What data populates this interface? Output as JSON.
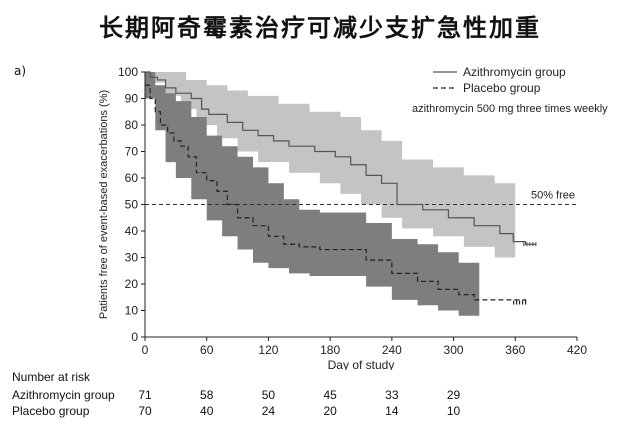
{
  "title": "长期阿奇霉素治疗可减少支扩急性加重",
  "panel_label": "a)",
  "chart_data": {
    "type": "line",
    "xlabel": "Day of study",
    "ylabel": "Patients free of event-based exacerbations (%)",
    "xlim": [
      0,
      420
    ],
    "ylim": [
      0,
      100
    ],
    "x_ticks": [
      0,
      60,
      120,
      180,
      240,
      300,
      360,
      420
    ],
    "y_ticks": [
      0,
      10,
      20,
      30,
      40,
      50,
      60,
      70,
      80,
      90,
      100
    ],
    "grid": false,
    "legend_position": "top-right",
    "annotation": "azithromycin 500 mg three times weekly",
    "reference_line": {
      "y": 50,
      "label": "50% free",
      "style": "dashed"
    },
    "series": [
      {
        "name": "Azithromycin group",
        "style": "solid",
        "line_color": "#555555",
        "band_color": "#c4c4c4",
        "steps": [
          [
            0,
            100
          ],
          [
            5,
            98
          ],
          [
            12,
            97
          ],
          [
            20,
            94
          ],
          [
            30,
            92
          ],
          [
            45,
            90
          ],
          [
            55,
            86
          ],
          [
            62,
            84
          ],
          [
            80,
            81
          ],
          [
            95,
            78
          ],
          [
            110,
            76
          ],
          [
            125,
            74
          ],
          [
            140,
            72
          ],
          [
            165,
            70
          ],
          [
            185,
            68
          ],
          [
            200,
            65
          ],
          [
            215,
            61
          ],
          [
            230,
            58
          ],
          [
            245,
            50
          ],
          [
            270,
            48
          ],
          [
            295,
            45
          ],
          [
            320,
            42
          ],
          [
            345,
            39
          ],
          [
            358,
            36
          ],
          [
            370,
            35
          ],
          [
            375,
            35
          ]
        ],
        "censor_end": [
          [
            360,
            35
          ],
          [
            380,
            35
          ]
        ],
        "ci_upper": [
          [
            0,
            100
          ],
          [
            20,
            100
          ],
          [
            40,
            97
          ],
          [
            60,
            95
          ],
          [
            80,
            93
          ],
          [
            100,
            91
          ],
          [
            130,
            88
          ],
          [
            160,
            85
          ],
          [
            190,
            83
          ],
          [
            210,
            78
          ],
          [
            230,
            74
          ],
          [
            250,
            67
          ],
          [
            280,
            64
          ],
          [
            310,
            61
          ],
          [
            340,
            58
          ],
          [
            360,
            58
          ]
        ],
        "ci_lower": [
          [
            0,
            100
          ],
          [
            10,
            96
          ],
          [
            20,
            91
          ],
          [
            35,
            86
          ],
          [
            50,
            80
          ],
          [
            70,
            75
          ],
          [
            90,
            70
          ],
          [
            110,
            66
          ],
          [
            140,
            62
          ],
          [
            170,
            58
          ],
          [
            190,
            54
          ],
          [
            210,
            50
          ],
          [
            230,
            45
          ],
          [
            250,
            41
          ],
          [
            280,
            38
          ],
          [
            310,
            34
          ],
          [
            340,
            30
          ],
          [
            360,
            27
          ]
        ]
      },
      {
        "name": "Placebo group",
        "style": "dashed",
        "line_color": "#222222",
        "band_color": "#7e7e7e",
        "steps": [
          [
            0,
            95
          ],
          [
            5,
            90
          ],
          [
            10,
            85
          ],
          [
            15,
            80
          ],
          [
            22,
            77
          ],
          [
            28,
            74
          ],
          [
            35,
            72
          ],
          [
            42,
            68
          ],
          [
            50,
            62
          ],
          [
            60,
            59
          ],
          [
            70,
            55
          ],
          [
            80,
            50
          ],
          [
            90,
            45
          ],
          [
            105,
            42
          ],
          [
            120,
            38
          ],
          [
            135,
            35
          ],
          [
            150,
            34
          ],
          [
            170,
            33
          ],
          [
            195,
            33
          ],
          [
            215,
            29
          ],
          [
            240,
            24
          ],
          [
            265,
            21
          ],
          [
            285,
            18
          ],
          [
            305,
            16
          ],
          [
            320,
            14
          ],
          [
            340,
            14
          ],
          [
            370,
            13
          ]
        ],
        "censor_end": [
          [
            370,
            13
          ]
        ],
        "ci_upper": [
          [
            0,
            100
          ],
          [
            10,
            95
          ],
          [
            20,
            92
          ],
          [
            30,
            89
          ],
          [
            45,
            83
          ],
          [
            60,
            76
          ],
          [
            75,
            72
          ],
          [
            90,
            68
          ],
          [
            105,
            64
          ],
          [
            120,
            58
          ],
          [
            135,
            52
          ],
          [
            150,
            48
          ],
          [
            170,
            47
          ],
          [
            195,
            47
          ],
          [
            215,
            43
          ],
          [
            240,
            37
          ],
          [
            265,
            35
          ],
          [
            285,
            32
          ],
          [
            305,
            28
          ],
          [
            325,
            25
          ]
        ],
        "ci_lower": [
          [
            0,
            90
          ],
          [
            10,
            78
          ],
          [
            20,
            66
          ],
          [
            30,
            60
          ],
          [
            45,
            52
          ],
          [
            60,
            44
          ],
          [
            75,
            38
          ],
          [
            90,
            33
          ],
          [
            105,
            28
          ],
          [
            120,
            26
          ],
          [
            140,
            24
          ],
          [
            160,
            23
          ],
          [
            195,
            23
          ],
          [
            215,
            19
          ],
          [
            240,
            14
          ],
          [
            265,
            12
          ],
          [
            285,
            10
          ],
          [
            305,
            8
          ],
          [
            325,
            7
          ]
        ]
      }
    ]
  },
  "risk_table": {
    "title": "Number at risk",
    "rows": [
      {
        "label": "Azithromycin group",
        "values": [
          "71",
          "58",
          "50",
          "45",
          "33",
          "29"
        ]
      },
      {
        "label": "Placebo group",
        "values": [
          "70",
          "40",
          "24",
          "20",
          "14",
          "10"
        ]
      }
    ],
    "columns_days": [
      0,
      60,
      120,
      180,
      240,
      300
    ]
  }
}
